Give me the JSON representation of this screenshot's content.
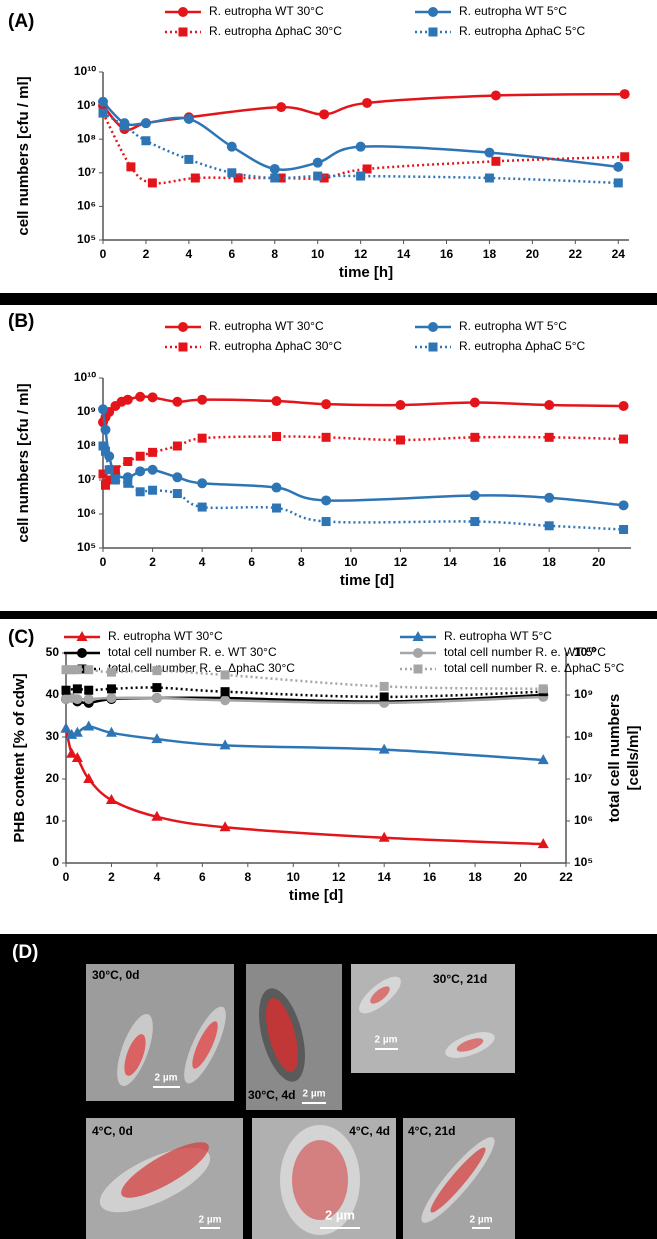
{
  "chart_data": [
    {
      "type": "line",
      "label": "(A)",
      "xlabel": "time [h]",
      "ylabel": "cell numbers [cfu / ml]",
      "xlim": [
        0,
        24.5
      ],
      "xticks": [
        0,
        2,
        4,
        6,
        8,
        10,
        12,
        14,
        16,
        18,
        20,
        22,
        24
      ],
      "ylim": [
        100000,
        10000000000
      ],
      "ylog": true,
      "yticks": [
        {
          "value": 100000,
          "label": "10⁵"
        },
        {
          "value": 1000000,
          "label": "10⁶"
        },
        {
          "value": 10000000,
          "label": "10⁷"
        },
        {
          "value": 100000000,
          "label": "10⁸"
        },
        {
          "value": 1000000000,
          "label": "10⁹"
        },
        {
          "value": 10000000000,
          "label": "10¹⁰"
        }
      ],
      "series": [
        {
          "name": "R. eutropha WT 30°C",
          "color": "#e3151b",
          "marker": "circle",
          "line": "solid",
          "x": [
            0,
            1,
            2,
            4,
            8.3,
            10.3,
            12.3,
            18.3,
            24.3
          ],
          "values": [
            1000000000,
            200000000,
            300000000,
            450000000,
            900000000,
            550000000,
            1200000000,
            2000000000,
            2200000000
          ]
        },
        {
          "name": "R. eutropha WT 5°C",
          "color": "#2e75b6",
          "marker": "circle",
          "line": "solid",
          "x": [
            0,
            1,
            2,
            4,
            6,
            8,
            10,
            12,
            18,
            24
          ],
          "values": [
            1300000000,
            300000000,
            300000000,
            400000000,
            60000000,
            13000000,
            20000000,
            60000000,
            40000000,
            15000000
          ]
        },
        {
          "name": "R. eutropha ΔphaC 30°C",
          "color": "#e3151b",
          "marker": "square",
          "line": "dotted",
          "x": [
            0,
            1.3,
            2.3,
            4.3,
            6.3,
            8.3,
            10.3,
            12.3,
            18.3,
            24.3
          ],
          "values": [
            600000000,
            15000000,
            5000000,
            7000000,
            7000000,
            7000000,
            7000000,
            13000000,
            22000000,
            30000000
          ]
        },
        {
          "name": "R. eutropha ΔphaC 5°C",
          "color": "#2e75b6",
          "marker": "square",
          "line": "dotted",
          "x": [
            0,
            1,
            2,
            4,
            6,
            8,
            10,
            12,
            18,
            24
          ],
          "values": [
            600000000,
            250000000,
            90000000,
            25000000,
            10000000,
            7000000,
            8000000,
            8000000,
            7000000,
            5000000
          ]
        }
      ]
    },
    {
      "type": "line",
      "label": "(B)",
      "xlabel": "time [d]",
      "ylabel": "cell numbers [cfu / ml]",
      "xlim": [
        0,
        21.3
      ],
      "xticks": [
        0,
        2,
        4,
        6,
        8,
        10,
        12,
        14,
        16,
        18,
        20
      ],
      "ylim": [
        100000,
        10000000000
      ],
      "ylog": true,
      "yticks": [
        {
          "value": 100000,
          "label": "10⁵"
        },
        {
          "value": 1000000,
          "label": "10⁶"
        },
        {
          "value": 10000000,
          "label": "10⁷"
        },
        {
          "value": 100000000,
          "label": "10⁸"
        },
        {
          "value": 1000000000,
          "label": "10⁹"
        },
        {
          "value": 10000000000,
          "label": "10¹⁰"
        }
      ],
      "series": [
        {
          "name": "R. eutropha WT 30°C",
          "color": "#e3151b",
          "marker": "circle",
          "line": "solid",
          "x": [
            0,
            0.1,
            0.25,
            0.5,
            0.75,
            1,
            1.5,
            2,
            3,
            4,
            7,
            9,
            12,
            15,
            18,
            21
          ],
          "values": [
            500000000,
            700000000,
            1000000000,
            1500000000,
            2000000000,
            2300000000,
            2800000000,
            2700000000,
            2000000000,
            2300000000,
            2100000000,
            1700000000,
            1600000000,
            1900000000,
            1600000000,
            1500000000
          ]
        },
        {
          "name": "R. eutropha WT 5°C",
          "color": "#2e75b6",
          "marker": "circle",
          "line": "solid",
          "x": [
            0,
            0.1,
            0.25,
            0.5,
            1,
            1.5,
            2,
            3,
            4,
            7,
            9,
            15,
            18,
            21
          ],
          "values": [
            1200000000,
            300000000,
            50000000,
            15000000,
            12000000,
            18000000,
            20000000,
            12000000,
            8000000,
            6000000,
            2500000,
            3500000,
            3000000,
            1800000
          ]
        },
        {
          "name": "R. eutropha ΔphaC 30°C",
          "color": "#e3151b",
          "marker": "square",
          "line": "dotted",
          "x": [
            0,
            0.1,
            0.25,
            0.5,
            1,
            1.5,
            2,
            3,
            4,
            7,
            9,
            12,
            15,
            18,
            21
          ],
          "values": [
            15000000,
            7000000,
            10000000,
            20000000,
            35000000,
            50000000,
            65000000,
            100000000,
            170000000,
            190000000,
            180000000,
            150000000,
            180000000,
            180000000,
            160000000
          ]
        },
        {
          "name": "R. eutropha ΔphaC 5°C",
          "color": "#2e75b6",
          "marker": "square",
          "line": "dotted",
          "x": [
            0,
            0.1,
            0.25,
            0.5,
            1,
            1.5,
            2,
            3,
            4,
            7,
            9,
            15,
            18,
            21
          ],
          "values": [
            100000000,
            70000000,
            20000000,
            10000000,
            8000000,
            4500000,
            5000000,
            4000000,
            1600000,
            1500000,
            600000,
            600000,
            450000,
            350000
          ]
        }
      ]
    },
    {
      "type": "line",
      "label": "(C)",
      "xlabel": "time [d]",
      "ylabel": "PHB content [% of cdw]",
      "y2label": [
        "total cell numbers",
        "[cells/ml]"
      ],
      "xlim": [
        0,
        22
      ],
      "xticks": [
        0,
        2,
        4,
        6,
        8,
        10,
        12,
        14,
        16,
        18,
        20,
        22
      ],
      "ylim": [
        0,
        50
      ],
      "yticks": [
        0,
        10,
        20,
        30,
        40,
        50
      ],
      "y2lim": [
        100000,
        10000000000
      ],
      "y2log": true,
      "y2ticks": [
        {
          "value": 100000,
          "label": "10⁵"
        },
        {
          "value": 1000000,
          "label": "10⁶"
        },
        {
          "value": 10000000,
          "label": "10⁷"
        },
        {
          "value": 100000000,
          "label": "10⁸"
        },
        {
          "value": 1000000000,
          "label": "10⁹"
        },
        {
          "value": 10000000000,
          "label": "10¹⁰"
        }
      ],
      "series": [
        {
          "name": "R. eutropha WT 30°C",
          "color": "#e3151b",
          "marker": "triangle",
          "line": "solid",
          "x": [
            0,
            0.25,
            0.5,
            1,
            2,
            4,
            7,
            14,
            21
          ],
          "values": [
            32,
            26,
            25,
            20,
            15,
            11,
            8.5,
            6,
            4.5
          ]
        },
        {
          "name": "R. eutropha WT 5°C",
          "color": "#2e75b6",
          "marker": "triangle",
          "line": "solid",
          "x": [
            0,
            0.25,
            0.5,
            1,
            2,
            4,
            7,
            14,
            21
          ],
          "values": [
            32,
            30.5,
            31,
            32.5,
            31,
            29.5,
            28,
            27,
            24.5
          ]
        },
        {
          "name": "total cell number R. e. WT 30°C",
          "color": "#000000",
          "marker": "circle",
          "line": "solid",
          "axis": "y2",
          "x": [
            0,
            0.5,
            1,
            2,
            4,
            7,
            14,
            21
          ],
          "values": [
            800000000,
            700000000,
            650000000,
            800000000,
            850000000,
            850000000,
            700000000,
            1000000000
          ]
        },
        {
          "name": "total cell number R. e. WT 5°C",
          "color": "#a5a5a5",
          "marker": "circle",
          "line": "solid",
          "axis": "y2",
          "x": [
            0,
            0.25,
            0.5,
            1,
            2,
            4,
            7,
            14,
            21
          ],
          "values": [
            800000000,
            850000000,
            800000000,
            800000000,
            850000000,
            850000000,
            750000000,
            650000000,
            900000000
          ]
        },
        {
          "name": "total cell number R. e. ΔphaC 30°C",
          "color": "#000000",
          "marker": "square",
          "line": "dotted",
          "axis": "y2",
          "x": [
            0,
            0.5,
            1,
            2,
            4,
            7,
            14,
            21
          ],
          "values": [
            1300000000,
            1400000000,
            1300000000,
            1400000000,
            1500000000,
            1200000000,
            900000000,
            1200000000
          ]
        },
        {
          "name": "total cell number R. e. ΔphaC 5°C",
          "color": "#a5a5a5",
          "marker": "square",
          "line": "dotted",
          "axis": "y2",
          "x": [
            0,
            0.25,
            0.5,
            1,
            2,
            4,
            7,
            14,
            21
          ],
          "values": [
            4000000000,
            4000000000,
            4000000000,
            4000000000,
            3500000000,
            3800000000,
            3000000000,
            1600000000,
            1400000000
          ]
        }
      ]
    }
  ],
  "panel_d": {
    "label": "(D)",
    "images": [
      {
        "label": "30°C, 0d",
        "scale_bar": "2 µm"
      },
      {
        "label": "30°C, 4d",
        "scale_bar": "2 µm"
      },
      {
        "label": "30°C, 21d",
        "scale_bar": "2 µm"
      },
      {
        "label": "4°C, 0d",
        "scale_bar": "2 µm"
      },
      {
        "label": "4°C, 4d",
        "scale_bar": "2 µm"
      },
      {
        "label": "4°C, 21d",
        "scale_bar": "2 µm"
      }
    ]
  }
}
